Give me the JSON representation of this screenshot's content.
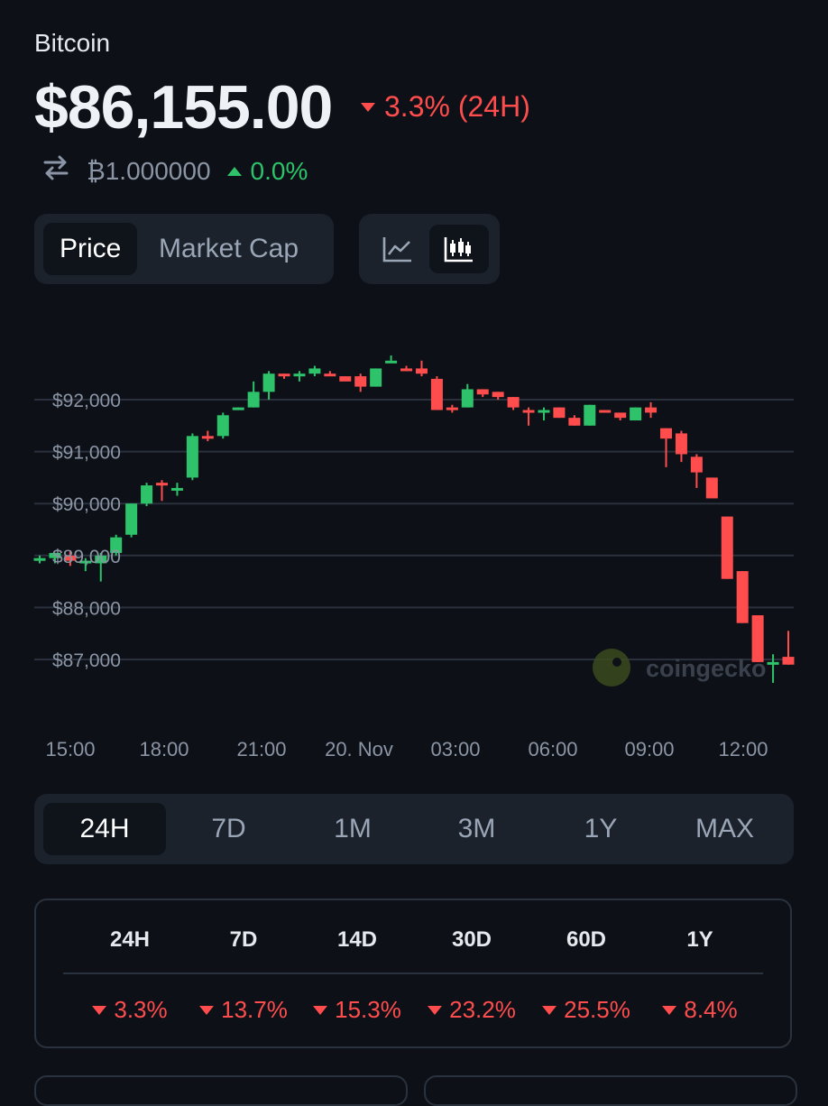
{
  "coin": {
    "name": "Bitcoin",
    "price": "$86,155.00",
    "change_24h": "3.3% (24H)",
    "change_direction": "down"
  },
  "btc_pair": {
    "icon": "swap-arrows-icon",
    "value": "₿1.000000",
    "change": "0.0%",
    "change_direction": "up"
  },
  "chart_tabs": {
    "price": "Price",
    "market_cap": "Market Cap",
    "selected": "Price"
  },
  "chart_style": {
    "options": [
      "line-chart-icon",
      "candlestick-chart-icon"
    ],
    "selected": "candlestick-chart-icon"
  },
  "watermark": "coingecko",
  "colors": {
    "up": "#2ec36a",
    "down": "#ff4d4d",
    "background": "#0d1117",
    "panel": "#1b222c"
  },
  "chart_data": {
    "type": "candlestick",
    "yticks": [
      "$92,000",
      "$91,000",
      "$90,000",
      "$89,000",
      "$88,000",
      "$87,000"
    ],
    "ytick_values": [
      92000,
      91000,
      90000,
      89000,
      88000,
      87000
    ],
    "xticks": [
      "15:00",
      "18:00",
      "21:00",
      "20. Nov",
      "03:00",
      "06:00",
      "09:00",
      "12:00"
    ],
    "ylim": [
      86300,
      93200
    ],
    "grid": true,
    "candles": [
      [
        88950,
        88950,
        88850,
        89000
      ],
      [
        88950,
        89050,
        88850,
        89050
      ],
      [
        89000,
        88900,
        88800,
        89100
      ],
      [
        88900,
        88900,
        88700,
        88950
      ],
      [
        88850,
        89000,
        88500,
        89050
      ],
      [
        89050,
        89350,
        89000,
        89400
      ],
      [
        89400,
        90000,
        89350,
        90000
      ],
      [
        90000,
        90350,
        89950,
        90400
      ],
      [
        90400,
        90350,
        90050,
        90450
      ],
      [
        90300,
        90300,
        90150,
        90400
      ],
      [
        90500,
        91300,
        90450,
        91350
      ],
      [
        91300,
        91250,
        91200,
        91400
      ],
      [
        91300,
        91700,
        91250,
        91750
      ],
      [
        91850,
        91850,
        91800,
        91850
      ],
      [
        91850,
        92150,
        91850,
        92350
      ],
      [
        92150,
        92500,
        92000,
        92550
      ],
      [
        92500,
        92450,
        92400,
        92500
      ],
      [
        92450,
        92500,
        92350,
        92550
      ],
      [
        92500,
        92600,
        92450,
        92650
      ],
      [
        92500,
        92450,
        92450,
        92550
      ],
      [
        92450,
        92350,
        92400,
        92450
      ],
      [
        92450,
        92250,
        92150,
        92500
      ],
      [
        92250,
        92600,
        92250,
        92600
      ],
      [
        92750,
        92750,
        92750,
        92850
      ],
      [
        92600,
        92550,
        92550,
        92650
      ],
      [
        92600,
        92500,
        92450,
        92750
      ],
      [
        92400,
        91800,
        91800,
        92450
      ],
      [
        91850,
        91800,
        91750,
        91900
      ],
      [
        91850,
        92200,
        91850,
        92300
      ],
      [
        92200,
        92100,
        92050,
        92200
      ],
      [
        92150,
        92050,
        92000,
        92150
      ],
      [
        92050,
        91850,
        91800,
        92050
      ],
      [
        91800,
        91750,
        91500,
        91850
      ],
      [
        91750,
        91800,
        91600,
        91850
      ],
      [
        91850,
        91650,
        91650,
        91850
      ],
      [
        91650,
        91500,
        91500,
        91700
      ],
      [
        91500,
        91900,
        91500,
        91900
      ],
      [
        91800,
        91750,
        91750,
        91800
      ],
      [
        91750,
        91650,
        91600,
        91700
      ],
      [
        91600,
        91850,
        91600,
        91850
      ],
      [
        91850,
        91750,
        91650,
        91950
      ],
      [
        91450,
        91250,
        90700,
        91450
      ],
      [
        91350,
        90950,
        90800,
        91400
      ],
      [
        90900,
        90600,
        90300,
        90950
      ],
      [
        90500,
        90100,
        90100,
        90500
      ],
      [
        89750,
        88550,
        88550,
        89750
      ],
      [
        88700,
        87700,
        87700,
        88700
      ],
      [
        87850,
        86950,
        86950,
        87850
      ],
      [
        86950,
        86950,
        86550,
        87100
      ],
      [
        87050,
        86900,
        86900,
        87550
      ]
    ]
  },
  "ranges": {
    "options": [
      "24H",
      "7D",
      "1M",
      "3M",
      "1Y",
      "MAX"
    ],
    "selected": "24H"
  },
  "performance": {
    "headers": [
      "24H",
      "7D",
      "14D",
      "30D",
      "60D",
      "1Y"
    ],
    "values": [
      "3.3%",
      "13.7%",
      "15.3%",
      "23.2%",
      "25.5%",
      "8.4%"
    ]
  }
}
